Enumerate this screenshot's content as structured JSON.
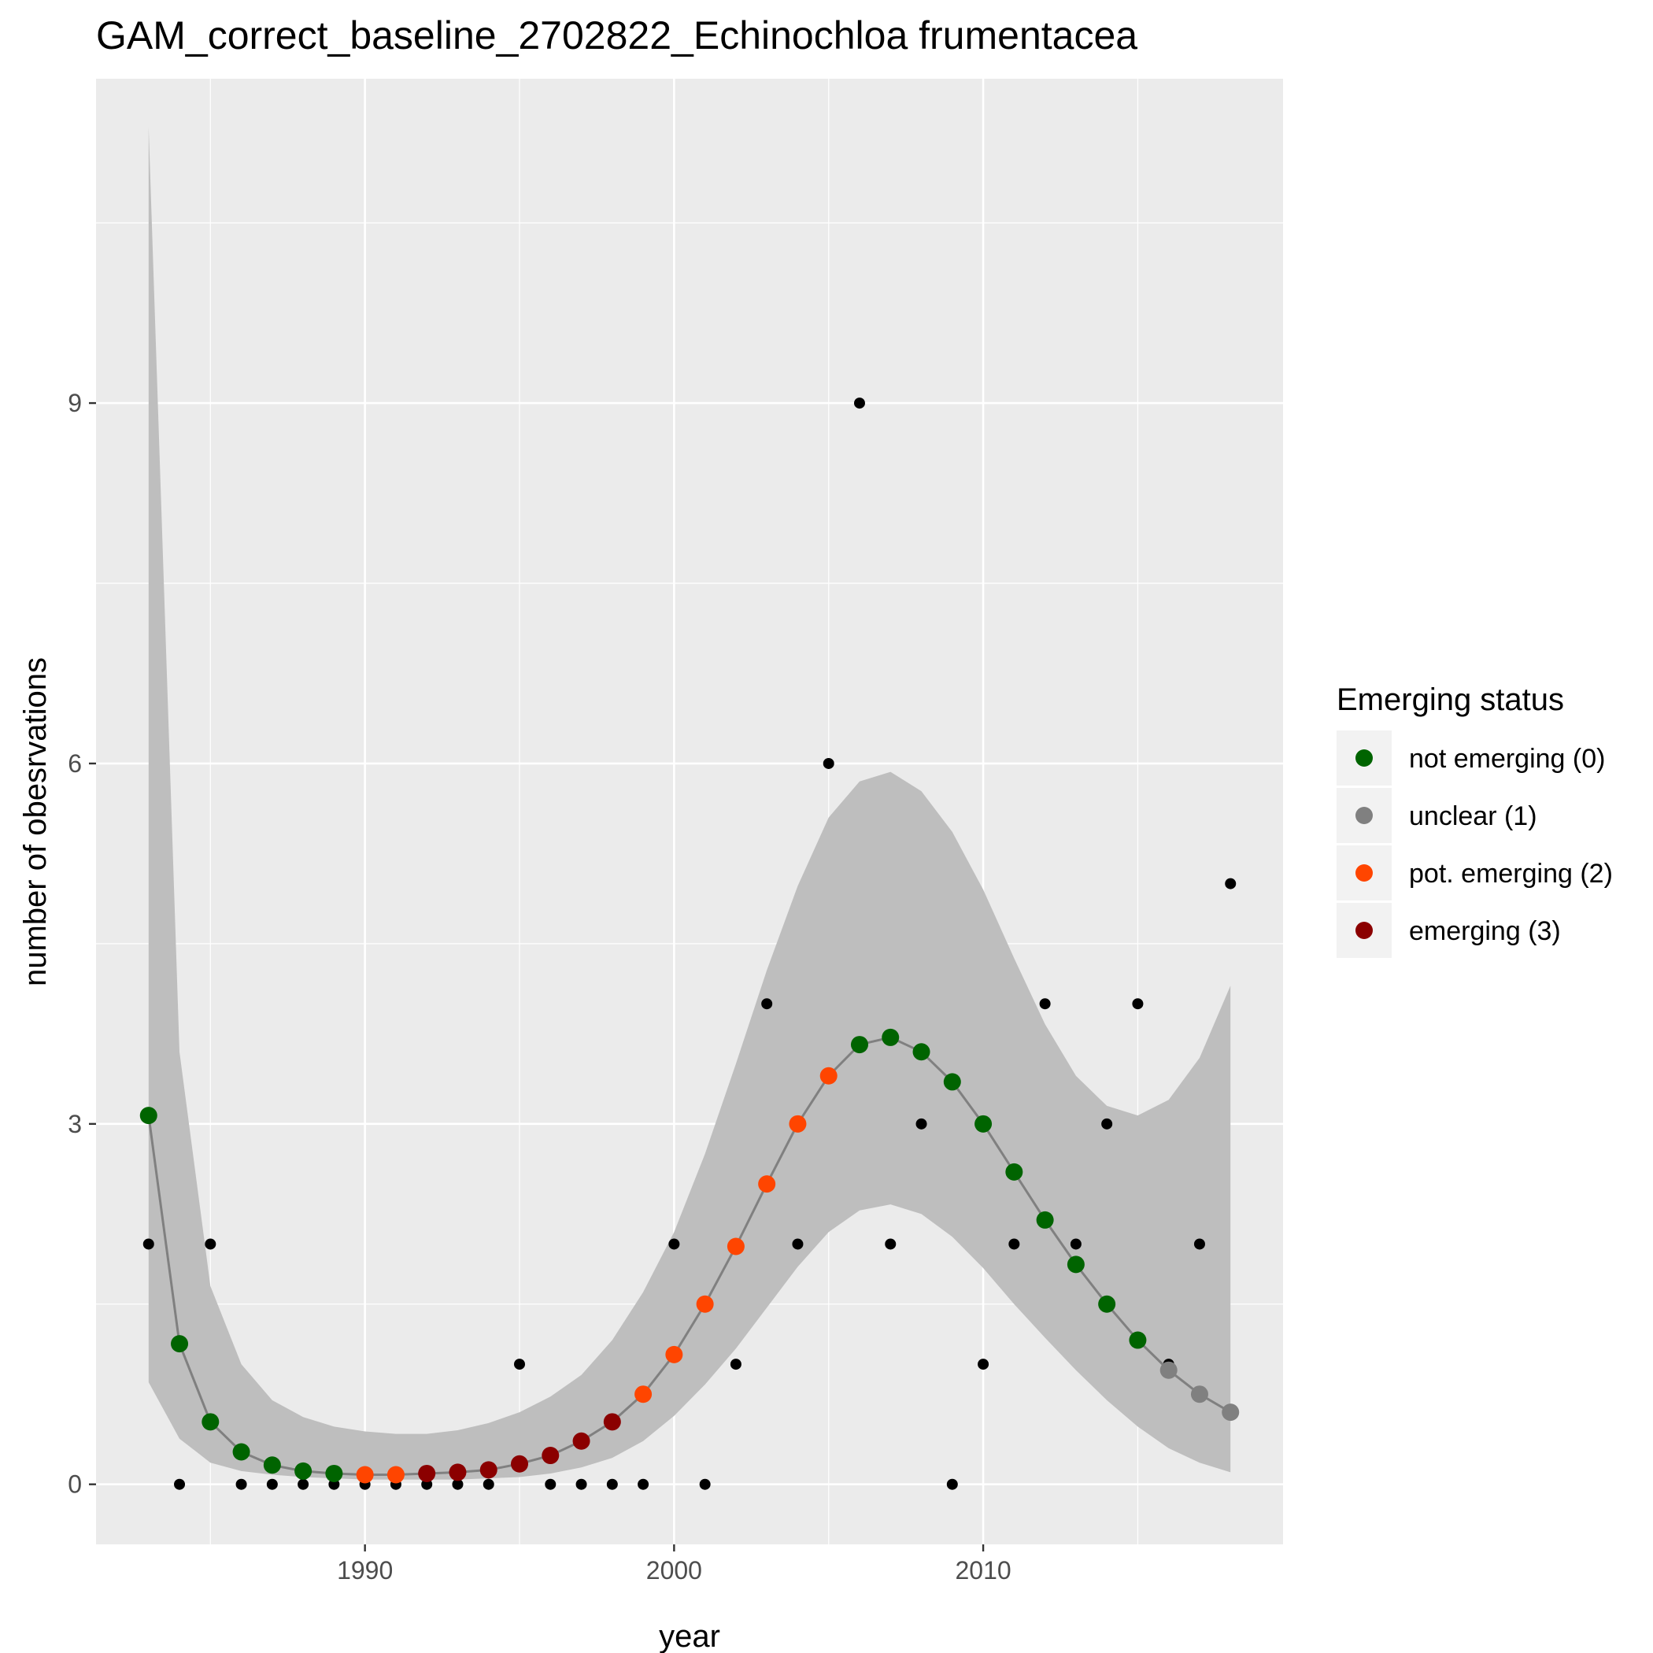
{
  "chart_data": {
    "type": "scatter",
    "title": "GAM_correct_baseline_2702822_Echinochloa frumentacea",
    "xlabel": "year",
    "ylabel": "number of obesrvations",
    "xlim": [
      1981.3,
      2019.7
    ],
    "ylim": [
      -0.5,
      11.7
    ],
    "x_ticks": [
      1990,
      2000,
      2010
    ],
    "y_ticks": [
      0,
      3,
      6,
      9
    ],
    "grid": true,
    "legend": {
      "title": "Emerging status",
      "position": "right",
      "entries": [
        {
          "label": "not emerging (0)",
          "color": "#006400"
        },
        {
          "label": "unclear (1)",
          "color": "#808080"
        },
        {
          "label": "pot. emerging (2)",
          "color": "#FF4500"
        },
        {
          "label": "emerging (3)",
          "color": "#8B0000"
        }
      ]
    },
    "colors": {
      "panel": "#EBEBEB",
      "grid": "#FFFFFF",
      "ribbon": "#BEBEBE",
      "fit_line": "#808080",
      "observed": "#000000"
    },
    "observed": [
      [
        1983,
        2
      ],
      [
        1984,
        0
      ],
      [
        1985,
        2
      ],
      [
        1986,
        0
      ],
      [
        1987,
        0
      ],
      [
        1988,
        0
      ],
      [
        1989,
        0
      ],
      [
        1990,
        0
      ],
      [
        1991,
        0
      ],
      [
        1992,
        0
      ],
      [
        1993,
        0
      ],
      [
        1994,
        0
      ],
      [
        1995,
        1
      ],
      [
        1996,
        0
      ],
      [
        1997,
        0
      ],
      [
        1998,
        0
      ],
      [
        1999,
        0
      ],
      [
        2000,
        2
      ],
      [
        2001,
        0
      ],
      [
        2002,
        1
      ],
      [
        2003,
        4
      ],
      [
        2004,
        2
      ],
      [
        2005,
        6
      ],
      [
        2006,
        9
      ],
      [
        2007,
        2
      ],
      [
        2008,
        3
      ],
      [
        2009,
        0
      ],
      [
        2010,
        1
      ],
      [
        2011,
        2
      ],
      [
        2012,
        4
      ],
      [
        2013,
        2
      ],
      [
        2014,
        3
      ],
      [
        2015,
        4
      ],
      [
        2016,
        1
      ],
      [
        2017,
        2
      ],
      [
        2018,
        5
      ]
    ],
    "fitted": [
      {
        "x": 1983,
        "y": 3.07,
        "lo": 0.85,
        "hi": 11.3,
        "status": 0
      },
      {
        "x": 1984,
        "y": 1.17,
        "lo": 0.38,
        "hi": 3.6,
        "status": 0
      },
      {
        "x": 1985,
        "y": 0.52,
        "lo": 0.18,
        "hi": 1.65,
        "status": 0
      },
      {
        "x": 1986,
        "y": 0.27,
        "lo": 0.11,
        "hi": 1.0,
        "status": 0
      },
      {
        "x": 1987,
        "y": 0.16,
        "lo": 0.08,
        "hi": 0.7,
        "status": 0
      },
      {
        "x": 1988,
        "y": 0.11,
        "lo": 0.06,
        "hi": 0.56,
        "status": 0
      },
      {
        "x": 1989,
        "y": 0.09,
        "lo": 0.05,
        "hi": 0.48,
        "status": 0
      },
      {
        "x": 1990,
        "y": 0.08,
        "lo": 0.04,
        "hi": 0.44,
        "status": 2
      },
      {
        "x": 1991,
        "y": 0.08,
        "lo": 0.04,
        "hi": 0.42,
        "status": 2
      },
      {
        "x": 1992,
        "y": 0.09,
        "lo": 0.04,
        "hi": 0.42,
        "status": 3
      },
      {
        "x": 1993,
        "y": 0.1,
        "lo": 0.04,
        "hi": 0.45,
        "status": 3
      },
      {
        "x": 1994,
        "y": 0.12,
        "lo": 0.05,
        "hi": 0.51,
        "status": 3
      },
      {
        "x": 1995,
        "y": 0.17,
        "lo": 0.06,
        "hi": 0.6,
        "status": 3
      },
      {
        "x": 1996,
        "y": 0.24,
        "lo": 0.09,
        "hi": 0.73,
        "status": 3
      },
      {
        "x": 1997,
        "y": 0.36,
        "lo": 0.14,
        "hi": 0.91,
        "status": 3
      },
      {
        "x": 1998,
        "y": 0.52,
        "lo": 0.22,
        "hi": 1.2,
        "status": 3
      },
      {
        "x": 1999,
        "y": 0.75,
        "lo": 0.36,
        "hi": 1.6,
        "status": 2
      },
      {
        "x": 2000,
        "y": 1.08,
        "lo": 0.57,
        "hi": 2.1,
        "status": 2
      },
      {
        "x": 2001,
        "y": 1.5,
        "lo": 0.83,
        "hi": 2.75,
        "status": 2
      },
      {
        "x": 2002,
        "y": 1.98,
        "lo": 1.13,
        "hi": 3.5,
        "status": 2
      },
      {
        "x": 2003,
        "y": 2.5,
        "lo": 1.47,
        "hi": 4.28,
        "status": 2
      },
      {
        "x": 2004,
        "y": 3.0,
        "lo": 1.81,
        "hi": 4.98,
        "status": 2
      },
      {
        "x": 2005,
        "y": 3.4,
        "lo": 2.1,
        "hi": 5.55,
        "status": 2
      },
      {
        "x": 2006,
        "y": 3.66,
        "lo": 2.28,
        "hi": 5.85,
        "status": 0
      },
      {
        "x": 2007,
        "y": 3.72,
        "lo": 2.33,
        "hi": 5.93,
        "status": 0
      },
      {
        "x": 2008,
        "y": 3.6,
        "lo": 2.25,
        "hi": 5.77,
        "status": 0
      },
      {
        "x": 2009,
        "y": 3.35,
        "lo": 2.06,
        "hi": 5.43,
        "status": 0
      },
      {
        "x": 2010,
        "y": 3.0,
        "lo": 1.8,
        "hi": 4.95,
        "status": 0
      },
      {
        "x": 2011,
        "y": 2.6,
        "lo": 1.5,
        "hi": 4.38,
        "status": 0
      },
      {
        "x": 2012,
        "y": 2.2,
        "lo": 1.22,
        "hi": 3.83,
        "status": 0
      },
      {
        "x": 2013,
        "y": 1.83,
        "lo": 0.95,
        "hi": 3.4,
        "status": 0
      },
      {
        "x": 2014,
        "y": 1.5,
        "lo": 0.7,
        "hi": 3.15,
        "status": 0
      },
      {
        "x": 2015,
        "y": 1.2,
        "lo": 0.48,
        "hi": 3.07,
        "status": 0
      },
      {
        "x": 2016,
        "y": 0.95,
        "lo": 0.3,
        "hi": 3.2,
        "status": 1
      },
      {
        "x": 2017,
        "y": 0.75,
        "lo": 0.18,
        "hi": 3.55,
        "status": 1
      },
      {
        "x": 2018,
        "y": 0.6,
        "lo": 0.1,
        "hi": 4.15,
        "status": 1
      }
    ]
  }
}
